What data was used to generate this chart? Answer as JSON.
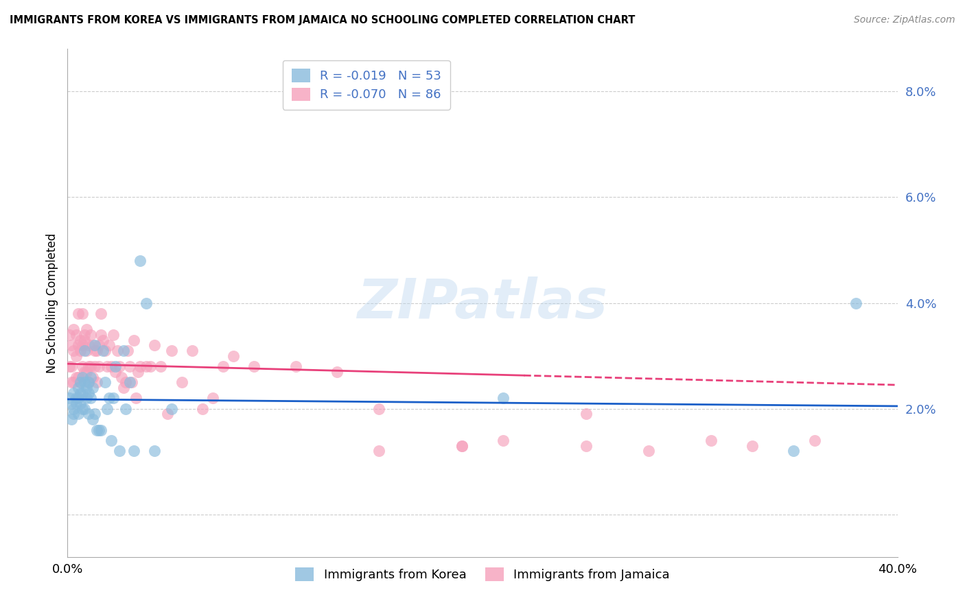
{
  "title": "IMMIGRANTS FROM KOREA VS IMMIGRANTS FROM JAMAICA NO SCHOOLING COMPLETED CORRELATION CHART",
  "source": "Source: ZipAtlas.com",
  "ylabel": "No Schooling Completed",
  "right_yticks": [
    0.0,
    0.02,
    0.04,
    0.06,
    0.08
  ],
  "right_yticklabels": [
    "",
    "2.0%",
    "4.0%",
    "6.0%",
    "8.0%"
  ],
  "xlim": [
    0.0,
    0.4
  ],
  "ylim": [
    -0.008,
    0.088
  ],
  "korea_R": "-0.019",
  "korea_N": "53",
  "jamaica_R": "-0.070",
  "jamaica_N": "86",
  "korea_color": "#88bbdd",
  "jamaica_color": "#f5a0bb",
  "korea_line_color": "#1a5fc8",
  "jamaica_line_color": "#e8407a",
  "watermark_text": "ZIPatlas",
  "korea_line_start_y": 0.0218,
  "korea_line_end_y": 0.0205,
  "jamaica_line_start_y": 0.0285,
  "jamaica_line_end_y": 0.0245,
  "korea_scatter_x": [
    0.001,
    0.002,
    0.002,
    0.003,
    0.003,
    0.003,
    0.004,
    0.004,
    0.005,
    0.005,
    0.005,
    0.006,
    0.006,
    0.006,
    0.007,
    0.007,
    0.007,
    0.008,
    0.008,
    0.008,
    0.009,
    0.009,
    0.01,
    0.01,
    0.01,
    0.011,
    0.011,
    0.012,
    0.012,
    0.013,
    0.013,
    0.014,
    0.015,
    0.016,
    0.017,
    0.018,
    0.019,
    0.02,
    0.021,
    0.022,
    0.023,
    0.025,
    0.027,
    0.028,
    0.03,
    0.032,
    0.035,
    0.038,
    0.042,
    0.05,
    0.21,
    0.35,
    0.38
  ],
  "korea_scatter_y": [
    0.022,
    0.021,
    0.018,
    0.023,
    0.02,
    0.019,
    0.022,
    0.021,
    0.024,
    0.022,
    0.019,
    0.025,
    0.023,
    0.021,
    0.026,
    0.023,
    0.02,
    0.031,
    0.025,
    0.02,
    0.024,
    0.022,
    0.025,
    0.023,
    0.019,
    0.026,
    0.022,
    0.024,
    0.018,
    0.032,
    0.019,
    0.016,
    0.016,
    0.016,
    0.031,
    0.025,
    0.02,
    0.022,
    0.014,
    0.022,
    0.028,
    0.012,
    0.031,
    0.02,
    0.025,
    0.012,
    0.048,
    0.04,
    0.012,
    0.02,
    0.022,
    0.012,
    0.04
  ],
  "jamaica_scatter_x": [
    0.001,
    0.001,
    0.002,
    0.002,
    0.002,
    0.003,
    0.003,
    0.003,
    0.004,
    0.004,
    0.004,
    0.005,
    0.005,
    0.005,
    0.006,
    0.006,
    0.006,
    0.007,
    0.007,
    0.007,
    0.008,
    0.008,
    0.008,
    0.009,
    0.009,
    0.009,
    0.01,
    0.01,
    0.01,
    0.011,
    0.011,
    0.012,
    0.012,
    0.013,
    0.013,
    0.014,
    0.014,
    0.015,
    0.015,
    0.016,
    0.016,
    0.017,
    0.018,
    0.019,
    0.02,
    0.021,
    0.022,
    0.023,
    0.024,
    0.025,
    0.026,
    0.027,
    0.028,
    0.029,
    0.03,
    0.031,
    0.032,
    0.033,
    0.034,
    0.035,
    0.038,
    0.04,
    0.042,
    0.045,
    0.048,
    0.05,
    0.055,
    0.06,
    0.065,
    0.07,
    0.075,
    0.08,
    0.09,
    0.11,
    0.13,
    0.15,
    0.19,
    0.21,
    0.25,
    0.28,
    0.31,
    0.33,
    0.36,
    0.25,
    0.19,
    0.15
  ],
  "jamaica_scatter_y": [
    0.028,
    0.034,
    0.032,
    0.028,
    0.025,
    0.035,
    0.031,
    0.025,
    0.034,
    0.03,
    0.026,
    0.038,
    0.032,
    0.026,
    0.033,
    0.031,
    0.025,
    0.032,
    0.038,
    0.028,
    0.034,
    0.033,
    0.027,
    0.031,
    0.035,
    0.027,
    0.032,
    0.028,
    0.025,
    0.034,
    0.028,
    0.032,
    0.026,
    0.031,
    0.028,
    0.031,
    0.025,
    0.032,
    0.028,
    0.034,
    0.038,
    0.033,
    0.031,
    0.028,
    0.032,
    0.028,
    0.034,
    0.027,
    0.031,
    0.028,
    0.026,
    0.024,
    0.025,
    0.031,
    0.028,
    0.025,
    0.033,
    0.022,
    0.027,
    0.028,
    0.028,
    0.028,
    0.032,
    0.028,
    0.019,
    0.031,
    0.025,
    0.031,
    0.02,
    0.022,
    0.028,
    0.03,
    0.028,
    0.028,
    0.027,
    0.02,
    0.013,
    0.014,
    0.013,
    0.012,
    0.014,
    0.013,
    0.014,
    0.019,
    0.013,
    0.012
  ]
}
